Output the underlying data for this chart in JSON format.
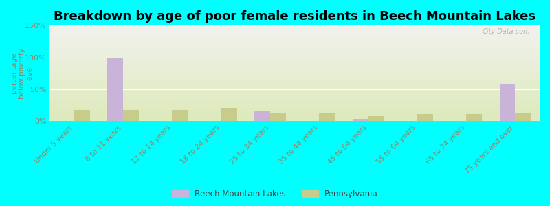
{
  "title": "Breakdown by age of poor female residents in Beech Mountain Lakes",
  "categories": [
    "Under 5 years",
    "6 to 11 years",
    "12 to 14 years",
    "18 to 24 years",
    "25 to 34 years",
    "35 to 44 years",
    "45 to 54 years",
    "55 to 64 years",
    "65 to 74 years",
    "75 years and over"
  ],
  "beech_values": [
    0,
    100,
    0,
    0,
    15,
    0,
    3,
    0,
    0,
    57
  ],
  "pa_values": [
    17,
    17,
    17,
    21,
    13,
    12,
    8,
    11,
    11,
    12
  ],
  "beech_color": "#c9b3d9",
  "pa_color": "#c8cc8a",
  "ylim": [
    0,
    150
  ],
  "yticks": [
    0,
    50,
    100,
    150
  ],
  "ytick_labels": [
    "0%",
    "50%",
    "100%",
    "150%"
  ],
  "ylabel": "percentage\nbelow poverty\nlevel",
  "beech_label": "Beech Mountain Lakes",
  "pa_label": "Pennsylvania",
  "title_fontsize": 13,
  "tick_label_color": "#888866",
  "background_color": "#00ffff",
  "watermark": "City-Data.com",
  "bar_width": 0.32
}
